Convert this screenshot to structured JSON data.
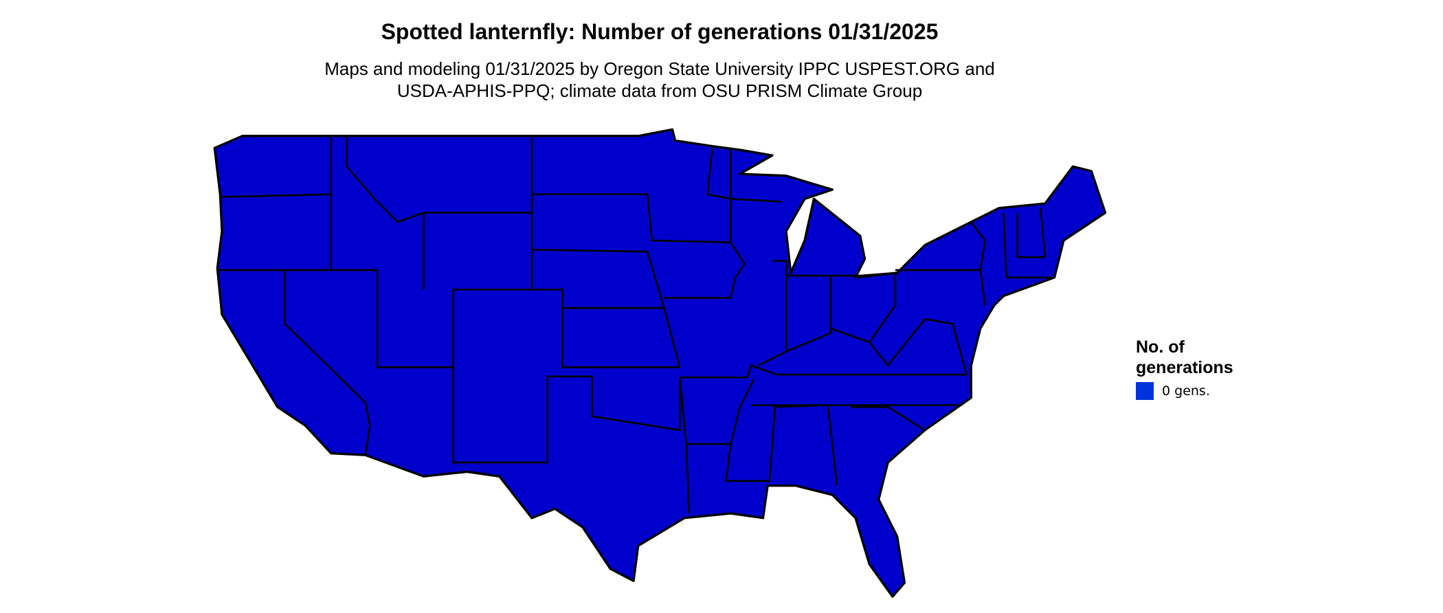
{
  "title": "Spotted lanternfly: Number of generations 01/31/2025",
  "subtitle": {
    "line1": "Maps and modeling 01/31/2025 by Oregon State University IPPC USPEST.ORG and",
    "line2": "USDA-APHIS-PPQ; climate data from OSU PRISM Climate Group"
  },
  "map": {
    "region": "Contiguous United States",
    "fill_color": "#0000CC",
    "border_color": "#000000",
    "value_everywhere": "0 gens."
  },
  "legend": {
    "title_line1": "No. of",
    "title_line2": "generations",
    "items": [
      {
        "label": "0 gens.",
        "color": "#0033DD"
      }
    ]
  }
}
